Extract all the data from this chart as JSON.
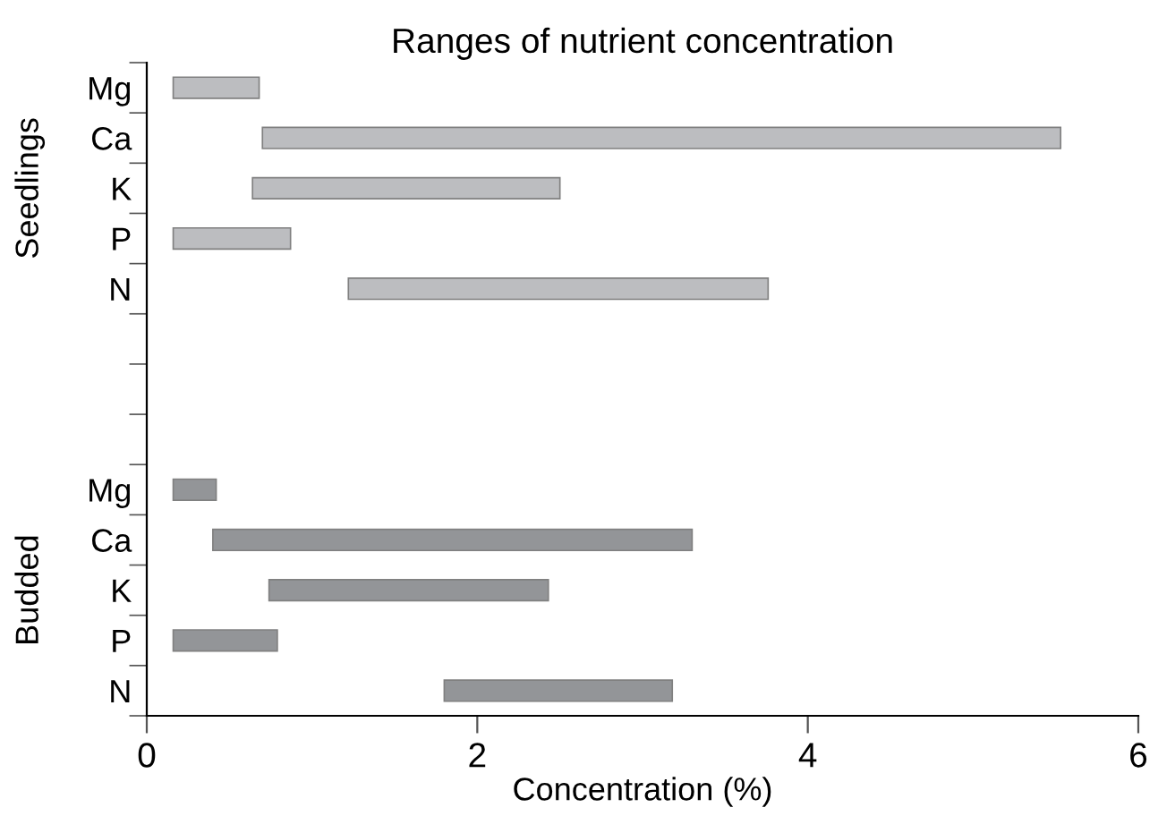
{
  "chart_data": {
    "type": "bar",
    "orientation": "horizontal",
    "title": "Ranges of nutrient concentration",
    "xlabel": "Concentration (%)",
    "categories": [
      "Mg",
      "Ca",
      "K",
      "P",
      "N",
      null,
      null,
      null,
      "Mg",
      "Ca",
      "K",
      "P",
      "N"
    ],
    "base": [
      0.16,
      0.7,
      0.64,
      0.16,
      1.22,
      null,
      null,
      null,
      0.16,
      0.4,
      0.74,
      0.16,
      1.8
    ],
    "values": [
      0.52,
      4.83,
      1.86,
      0.71,
      2.54,
      null,
      null,
      null,
      0.26,
      2.9,
      1.69,
      0.63,
      1.38
    ],
    "colors": [
      "#bcbdc0",
      "#bcbdc0",
      "#bcbdc0",
      "#bcbdc0",
      "#bcbdc0",
      null,
      null,
      null,
      "#939598",
      "#939598",
      "#939598",
      "#939598",
      "#939598"
    ],
    "xlim": [
      0,
      6
    ],
    "xticks": [
      0,
      2,
      4,
      6
    ],
    "grid": false,
    "annotations": [
      "Seedlings",
      "Budded"
    ]
  }
}
